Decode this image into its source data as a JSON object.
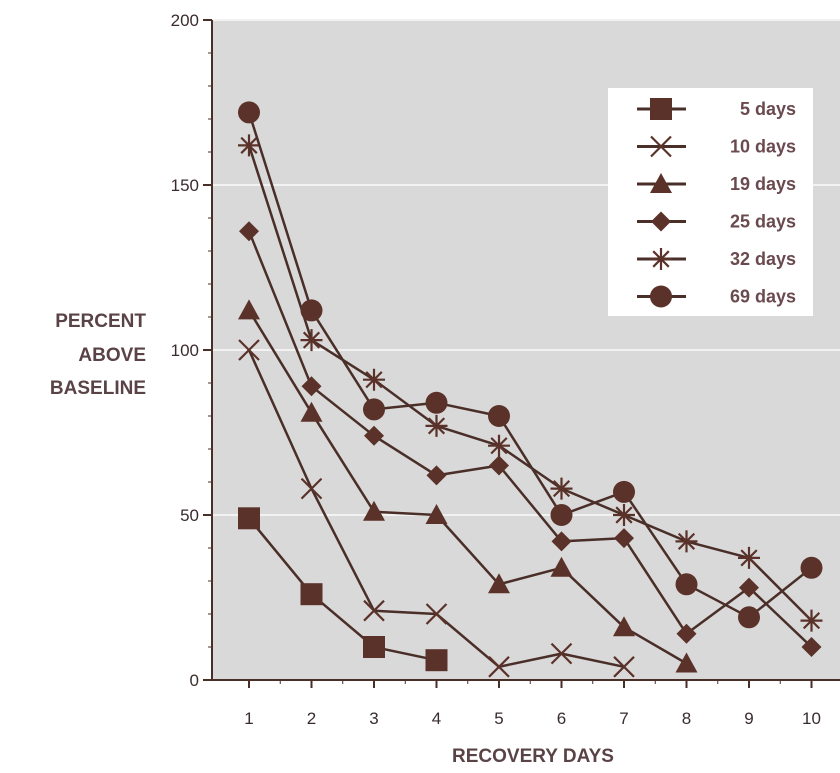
{
  "chart_data": {
    "type": "line",
    "xlabel": "RECOVERY DAYS",
    "ylabel_lines": [
      "PERCENT",
      "ABOVE",
      "BASELINE"
    ],
    "x_ticks": [
      "1",
      "2",
      "3",
      "4",
      "5",
      "6",
      "7",
      "8",
      "9",
      "10"
    ],
    "y_ticks": [
      "0",
      "50",
      "100",
      "150",
      "200"
    ],
    "ylim": [
      0,
      200
    ],
    "xlim": [
      0.5,
      10.6
    ],
    "grid": "horizontal",
    "legend_position": "top-right",
    "colors": {
      "line": "#4a2e28",
      "marker": "#5b3229",
      "plot_bg": "#d9d9d9",
      "grid": "#f2f2f2",
      "label_text": "#5a4346",
      "legend_text": "#6a4a4e"
    },
    "series": [
      {
        "name": "5 days",
        "marker": "square",
        "x": [
          1,
          2,
          3,
          4
        ],
        "y": [
          49,
          26,
          10,
          6
        ]
      },
      {
        "name": "10 days",
        "marker": "x",
        "x": [
          1,
          2,
          3,
          4,
          5,
          6,
          7
        ],
        "y": [
          100,
          58,
          21,
          20,
          4,
          8,
          4
        ]
      },
      {
        "name": "19 days",
        "marker": "triangle",
        "x": [
          1,
          2,
          3,
          4,
          5,
          6,
          7,
          8
        ],
        "y": [
          112,
          81,
          51,
          50,
          29,
          34,
          16,
          5
        ]
      },
      {
        "name": "25 days",
        "marker": "diamond",
        "x": [
          1,
          2,
          3,
          4,
          5,
          6,
          7,
          8,
          9,
          10
        ],
        "y": [
          136,
          89,
          74,
          62,
          65,
          42,
          43,
          14,
          28,
          10
        ]
      },
      {
        "name": "32 days",
        "marker": "asterisk",
        "x": [
          1,
          2,
          3,
          4,
          5,
          6,
          7,
          8,
          9,
          10
        ],
        "y": [
          162,
          103,
          91,
          77,
          71,
          58,
          50,
          42,
          37,
          18
        ]
      },
      {
        "name": "69 days",
        "marker": "circle",
        "x": [
          1,
          2,
          3,
          4,
          5,
          6,
          7,
          8,
          9,
          10
        ],
        "y": [
          172,
          112,
          82,
          84,
          80,
          50,
          57,
          29,
          19,
          34
        ]
      }
    ]
  }
}
